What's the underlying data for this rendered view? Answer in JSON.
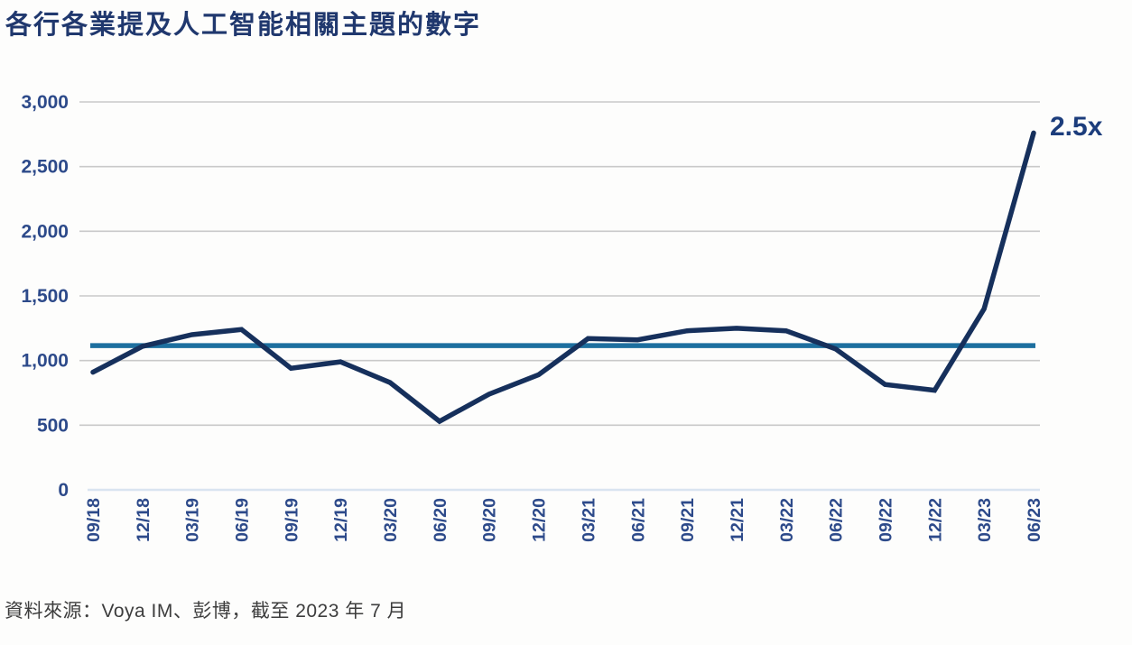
{
  "title": "各行各業提及人工智能相關主題的數字",
  "source": "資料來源：Voya IM、彭博，截至 2023 年 7 月",
  "colors": {
    "title": "#20386e",
    "data_line": "#16305c",
    "average_line": "#1d6f9f",
    "gridline": "#c9c9c9",
    "baseline": "#d9e4f0",
    "tick_label": "#2d4a8a",
    "annotation": "#1c3d7c",
    "source_text": "#3d3d3d",
    "background": "#fdfdfc"
  },
  "chart_data": {
    "type": "line",
    "title": "各行各業提及人工智能相關主題的數字",
    "categories": [
      "09/18",
      "12/18",
      "03/19",
      "06/19",
      "09/19",
      "12/19",
      "03/20",
      "06/20",
      "09/20",
      "12/20",
      "03/21",
      "06/21",
      "09/21",
      "12/21",
      "03/22",
      "06/22",
      "09/22",
      "12/22",
      "03/23",
      "06/23"
    ],
    "series": [
      {
        "name": "ai-topic-mentions",
        "values": [
          910,
          1110,
          1200,
          1240,
          940,
          990,
          830,
          530,
          740,
          890,
          1170,
          1160,
          1230,
          1250,
          1230,
          1090,
          815,
          770,
          1400,
          2760
        ]
      }
    ],
    "average_line_value": 1115,
    "yticks": [
      0,
      500,
      1000,
      1500,
      2000,
      2500,
      3000
    ],
    "ylim": [
      0,
      3000
    ],
    "xlabel": "",
    "ylabel": "",
    "grid": "horizontal",
    "legend": "none",
    "annotation": {
      "text": "2.5x",
      "at_category": "06/23"
    }
  }
}
